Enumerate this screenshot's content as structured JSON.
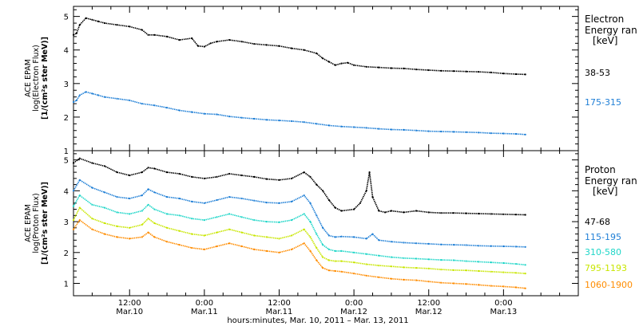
{
  "figure": {
    "x_axis_title": "hours:minutes, Mar. 10, 2011 – Mar. 13, 2011",
    "x_ticks": [
      {
        "time": "12:00",
        "date": "Mar.10",
        "hour": 12
      },
      {
        "time": "0:00",
        "date": "Mar.11",
        "hour": 24
      },
      {
        "time": "12:00",
        "date": "Mar.11",
        "hour": 36
      },
      {
        "time": "0:00",
        "date": "Mar.12",
        "hour": 48
      },
      {
        "time": "12:00",
        "date": "Mar.12",
        "hour": 60
      },
      {
        "time": "0:00",
        "date": "Mar.13",
        "hour": 72
      }
    ],
    "panels": {
      "electron": {
        "ylabel_line1": "ACE EPAM",
        "ylabel_line2": "log(Electron Flux)",
        "ylabel_line3": "[1/(cm²s ster MeV)]",
        "legend_title_line1": "Electron",
        "legend_title_line2": "Energy ran",
        "legend_units": "[keV]"
      },
      "proton": {
        "ylabel_line1": "ACE EPAM",
        "ylabel_line2": "log(Proton Flux)",
        "ylabel_line3": "[1/(cm²s ster MeV)]",
        "legend_title_line1": "Proton",
        "legend_title_line2": "Energy ran",
        "legend_units": "[keV]"
      }
    }
  },
  "chart_data": [
    {
      "type": "scatter",
      "panel": "electron",
      "x_unit": "hours since 2011-03-10 00:00",
      "xlim": [
        3,
        84
      ],
      "ylim": [
        1,
        5.3
      ],
      "y_ticks": [
        1,
        2,
        3,
        4,
        5
      ],
      "grid": false,
      "legend_placement": "right",
      "series": [
        {
          "name": "38-53",
          "color": "#000000",
          "x": [
            3,
            3.5,
            4,
            5,
            6,
            7,
            8,
            10,
            12,
            14,
            15,
            16,
            18,
            20,
            22,
            23,
            24,
            25,
            26,
            28,
            30,
            32,
            34,
            36,
            38,
            40,
            42,
            43,
            44,
            45,
            46,
            47,
            48,
            50,
            52,
            54,
            56,
            58,
            60,
            62,
            64,
            66,
            68,
            70,
            72,
            74,
            75.5
          ],
          "y": [
            4.45,
            4.5,
            4.75,
            4.95,
            4.9,
            4.85,
            4.8,
            4.75,
            4.7,
            4.6,
            4.45,
            4.45,
            4.4,
            4.3,
            4.35,
            4.12,
            4.1,
            4.2,
            4.25,
            4.3,
            4.25,
            4.18,
            4.15,
            4.12,
            4.05,
            4.0,
            3.9,
            3.75,
            3.65,
            3.55,
            3.6,
            3.62,
            3.55,
            3.5,
            3.48,
            3.46,
            3.45,
            3.42,
            3.4,
            3.38,
            3.37,
            3.36,
            3.35,
            3.33,
            3.3,
            3.28,
            3.27
          ]
        },
        {
          "name": "175-315",
          "color": "#1f7fd6",
          "x": [
            3,
            3.5,
            4,
            5,
            6,
            7,
            8,
            10,
            12,
            14,
            16,
            18,
            20,
            22,
            24,
            26,
            28,
            30,
            32,
            34,
            36,
            38,
            40,
            42,
            44,
            46,
            48,
            50,
            52,
            54,
            56,
            58,
            60,
            62,
            64,
            66,
            68,
            70,
            72,
            74,
            75.5
          ],
          "y": [
            2.45,
            2.5,
            2.65,
            2.75,
            2.7,
            2.65,
            2.6,
            2.55,
            2.5,
            2.4,
            2.35,
            2.28,
            2.2,
            2.15,
            2.1,
            2.08,
            2.02,
            1.98,
            1.95,
            1.92,
            1.9,
            1.88,
            1.85,
            1.8,
            1.75,
            1.72,
            1.7,
            1.68,
            1.65,
            1.63,
            1.62,
            1.6,
            1.58,
            1.57,
            1.56,
            1.55,
            1.54,
            1.52,
            1.51,
            1.5,
            1.48
          ]
        }
      ]
    },
    {
      "type": "scatter",
      "panel": "proton",
      "x_unit": "hours since 2011-03-10 00:00",
      "xlim": [
        3,
        84
      ],
      "ylim": [
        0.6,
        5.3
      ],
      "y_ticks": [
        1,
        2,
        3,
        4,
        5
      ],
      "grid": false,
      "legend_placement": "right",
      "series": [
        {
          "name": "47-68",
          "color": "#000000",
          "x": [
            3,
            4,
            6,
            8,
            10,
            12,
            14,
            15,
            16,
            18,
            20,
            22,
            24,
            26,
            28,
            30,
            32,
            34,
            36,
            38,
            40,
            41,
            42,
            43,
            44,
            45,
            46,
            48,
            49,
            50,
            50.5,
            51,
            52,
            53,
            54,
            56,
            58,
            60,
            62,
            64,
            66,
            68,
            70,
            72,
            74,
            75.5
          ],
          "y": [
            4.9,
            5.05,
            4.9,
            4.8,
            4.6,
            4.5,
            4.6,
            4.75,
            4.72,
            4.6,
            4.55,
            4.45,
            4.4,
            4.45,
            4.55,
            4.5,
            4.45,
            4.38,
            4.35,
            4.4,
            4.6,
            4.45,
            4.2,
            4.0,
            3.7,
            3.45,
            3.35,
            3.4,
            3.6,
            4.0,
            4.6,
            3.8,
            3.35,
            3.3,
            3.35,
            3.3,
            3.35,
            3.3,
            3.28,
            3.28,
            3.27,
            3.26,
            3.25,
            3.24,
            3.23,
            3.22
          ]
        },
        {
          "name": "115-195",
          "color": "#1f7fd6",
          "x": [
            3,
            4,
            6,
            8,
            10,
            12,
            14,
            15,
            16,
            18,
            20,
            22,
            24,
            26,
            28,
            30,
            32,
            34,
            36,
            38,
            40,
            41,
            42,
            43,
            44,
            45,
            46,
            48,
            50,
            51,
            52,
            54,
            56,
            58,
            60,
            62,
            64,
            66,
            68,
            70,
            72,
            74,
            75.5
          ],
          "y": [
            4.0,
            4.35,
            4.1,
            3.95,
            3.8,
            3.75,
            3.85,
            4.05,
            3.95,
            3.8,
            3.75,
            3.65,
            3.6,
            3.7,
            3.8,
            3.75,
            3.68,
            3.62,
            3.6,
            3.65,
            3.85,
            3.6,
            3.2,
            2.8,
            2.55,
            2.5,
            2.52,
            2.5,
            2.45,
            2.6,
            2.4,
            2.35,
            2.32,
            2.3,
            2.28,
            2.26,
            2.25,
            2.24,
            2.22,
            2.21,
            2.2,
            2.19,
            2.18
          ]
        },
        {
          "name": "310-580",
          "color": "#1fd6c8",
          "x": [
            3,
            4,
            6,
            8,
            10,
            12,
            14,
            15,
            16,
            18,
            20,
            22,
            24,
            26,
            28,
            30,
            32,
            34,
            36,
            38,
            40,
            41,
            42,
            43,
            44,
            45,
            46,
            48,
            50,
            52,
            54,
            56,
            58,
            60,
            62,
            64,
            66,
            68,
            70,
            72,
            74,
            75.5
          ],
          "y": [
            3.5,
            3.85,
            3.55,
            3.45,
            3.3,
            3.25,
            3.35,
            3.55,
            3.4,
            3.25,
            3.2,
            3.1,
            3.05,
            3.15,
            3.25,
            3.15,
            3.05,
            3.0,
            2.98,
            3.05,
            3.25,
            3.0,
            2.6,
            2.25,
            2.1,
            2.05,
            2.05,
            2.0,
            1.95,
            1.9,
            1.85,
            1.82,
            1.8,
            1.78,
            1.76,
            1.75,
            1.72,
            1.7,
            1.68,
            1.66,
            1.63,
            1.6
          ]
        },
        {
          "name": "795-1193",
          "color": "#c8e600",
          "x": [
            3,
            4,
            6,
            8,
            10,
            12,
            14,
            15,
            16,
            18,
            20,
            22,
            24,
            26,
            28,
            30,
            32,
            34,
            36,
            38,
            40,
            41,
            42,
            43,
            44,
            45,
            46,
            48,
            50,
            52,
            54,
            56,
            58,
            60,
            62,
            64,
            66,
            68,
            70,
            72,
            74,
            75.5
          ],
          "y": [
            3.05,
            3.45,
            3.1,
            2.95,
            2.85,
            2.8,
            2.9,
            3.1,
            2.95,
            2.8,
            2.7,
            2.6,
            2.55,
            2.65,
            2.75,
            2.65,
            2.55,
            2.5,
            2.45,
            2.55,
            2.75,
            2.5,
            2.15,
            1.85,
            1.75,
            1.72,
            1.72,
            1.68,
            1.62,
            1.58,
            1.55,
            1.52,
            1.5,
            1.48,
            1.45,
            1.43,
            1.42,
            1.4,
            1.38,
            1.36,
            1.34,
            1.32
          ]
        },
        {
          "name": "1060-1900",
          "color": "#ff8c00",
          "x": [
            3,
            4,
            6,
            8,
            10,
            12,
            14,
            15,
            16,
            18,
            20,
            22,
            24,
            26,
            28,
            30,
            32,
            34,
            36,
            38,
            40,
            41,
            42,
            43,
            44,
            45,
            46,
            48,
            50,
            52,
            54,
            56,
            58,
            60,
            62,
            64,
            66,
            68,
            70,
            72,
            74,
            75.5
          ],
          "y": [
            2.75,
            3.05,
            2.75,
            2.6,
            2.5,
            2.45,
            2.5,
            2.65,
            2.5,
            2.35,
            2.25,
            2.15,
            2.1,
            2.2,
            2.3,
            2.2,
            2.1,
            2.05,
            2.0,
            2.1,
            2.3,
            2.05,
            1.75,
            1.5,
            1.42,
            1.4,
            1.38,
            1.32,
            1.25,
            1.2,
            1.15,
            1.12,
            1.1,
            1.06,
            1.02,
            1.0,
            0.98,
            0.95,
            0.92,
            0.9,
            0.87,
            0.84
          ]
        }
      ]
    }
  ]
}
